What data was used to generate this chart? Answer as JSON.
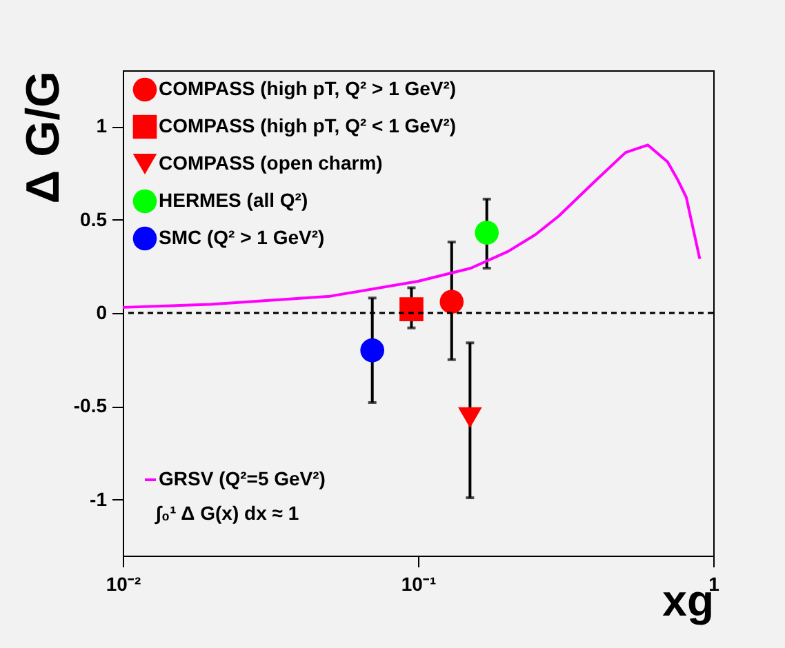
{
  "chart_data": {
    "type": "scatter",
    "xlabel": "xg",
    "ylabel": "Δ G/G",
    "xlim": [
      0.01,
      1
    ],
    "ylim": [
      -1.3,
      1.3
    ],
    "xticks": [
      {
        "value": 0.01,
        "label": "10⁻²"
      },
      {
        "value": 0.1,
        "label": "10⁻¹"
      },
      {
        "value": 1,
        "label": "1"
      }
    ],
    "yticks": [
      -1,
      -0.5,
      0,
      0.5,
      1
    ],
    "log": "x",
    "grid": false,
    "legend": "top left",
    "series": [
      {
        "name": "COMPASS (high pT, Q² > 1 GeV²)",
        "color": "#ff0000",
        "marker": "circle",
        "x": [
          0.13
        ],
        "values": [
          0.06
        ],
        "errors": [
          [
            -0.25,
            0.38
          ]
        ]
      },
      {
        "name": "COMPASS (high pT, Q² < 1 GeV²)",
        "color": "#ff0000",
        "marker": "square",
        "x": [
          0.095
        ],
        "values": [
          0.02
        ],
        "errors": [
          [
            -0.08,
            0.135
          ]
        ]
      },
      {
        "name": "COMPASS (open charm)",
        "color": "#ff0000",
        "marker": "triangle-down",
        "x": [
          0.15
        ],
        "values": [
          -0.56
        ],
        "errors": [
          [
            -0.99,
            -0.16
          ]
        ]
      },
      {
        "name": "HERMES (all Q²)",
        "color": "#00ff00",
        "marker": "circle",
        "x": [
          0.171
        ],
        "values": [
          0.43
        ],
        "errors": [
          [
            0.24,
            0.61
          ]
        ]
      },
      {
        "name": "SMC (Q² > 1 GeV²)",
        "color": "#0000ff",
        "marker": "circle",
        "x": [
          0.07
        ],
        "values": [
          -0.2
        ],
        "errors": [
          [
            -0.48,
            0.08
          ]
        ]
      },
      {
        "name": "GRSV (Q²=5 GeV²)",
        "type": "line",
        "color": "#ff00ff",
        "marker": "none",
        "x": [
          0.01,
          0.0198,
          0.0505,
          0.1,
          0.151,
          0.202,
          0.25,
          0.3,
          0.4,
          0.505,
          0.6,
          0.7,
          0.76,
          0.81,
          0.9
        ],
        "values": [
          0.03,
          0.046,
          0.09,
          0.17,
          0.24,
          0.33,
          0.42,
          0.52,
          0.71,
          0.86,
          0.9,
          0.81,
          0.71,
          0.62,
          0.29
        ]
      }
    ],
    "ref_lines": [
      {
        "axis": "y",
        "value": 0,
        "color": "#000000",
        "line_style": "dashed"
      }
    ],
    "annotations": [
      "∫₀¹ Δ G(x) dx ≈ 1"
    ]
  }
}
